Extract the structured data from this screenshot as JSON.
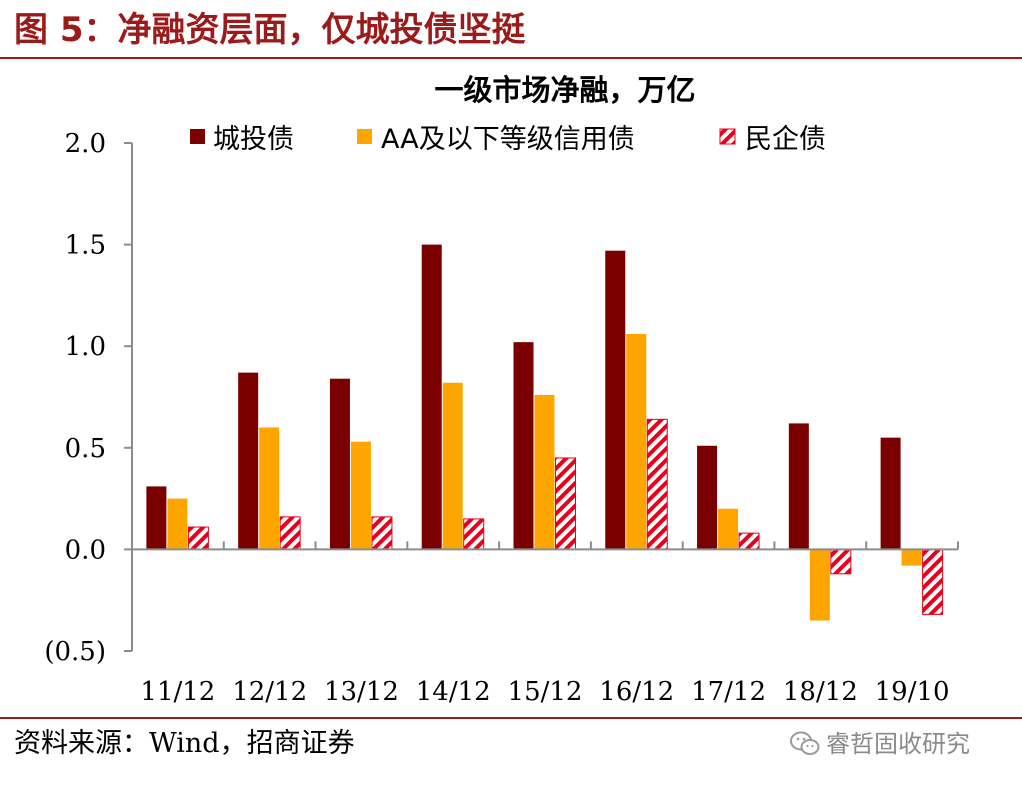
{
  "figure": {
    "title": "图 5：净融资层面，仅城投债坚挺",
    "source": "资料来源：Wind，招商证券",
    "watermark": "睿哲固收研究",
    "watermark_icon": "wechat-icon"
  },
  "chart_data": {
    "type": "bar",
    "title": "一级市场净融，万亿",
    "xlabel": "",
    "ylabel": "",
    "categories": [
      "11/12",
      "12/12",
      "13/12",
      "14/12",
      "15/12",
      "16/12",
      "17/12",
      "18/12",
      "19/10"
    ],
    "series": [
      {
        "name": "城投债",
        "color": "#7a0000",
        "pattern": "solid",
        "values": [
          0.31,
          0.87,
          0.84,
          1.5,
          1.02,
          1.47,
          0.51,
          0.62,
          0.55
        ]
      },
      {
        "name": "AA及以下等级信用债",
        "color": "#ffa500",
        "pattern": "solid",
        "values": [
          0.25,
          0.6,
          0.53,
          0.82,
          0.76,
          1.06,
          0.2,
          -0.35,
          -0.08
        ]
      },
      {
        "name": "民企债",
        "color": "#e8001c",
        "pattern": "hatch",
        "values": [
          0.11,
          0.16,
          0.16,
          0.15,
          0.45,
          0.64,
          0.08,
          -0.12,
          -0.32
        ]
      }
    ],
    "ylim": [
      -0.5,
      2.0
    ],
    "yticks": [
      2.0,
      1.5,
      1.0,
      0.5,
      0.0,
      -0.5
    ],
    "ytick_labels": [
      "2.0",
      "1.5",
      "1.0",
      "0.5",
      "0.0",
      "(0.5)"
    ],
    "grid": false,
    "legend": "top"
  }
}
